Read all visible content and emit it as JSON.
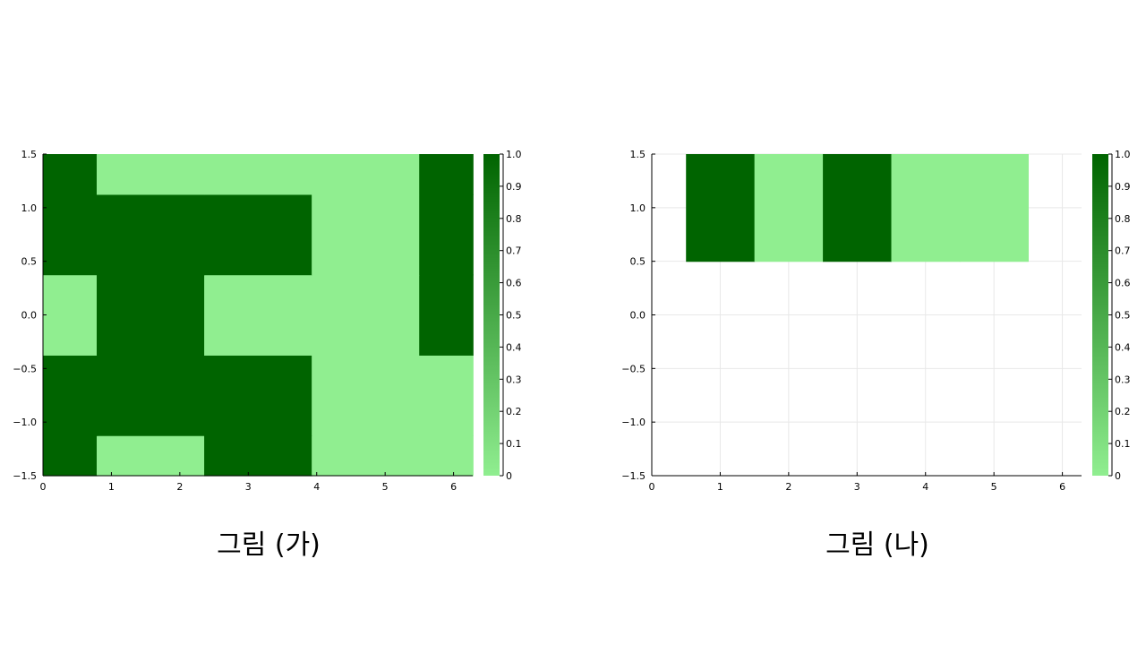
{
  "colors": {
    "low": "#90ee90",
    "high": "#006400",
    "grid": "#e8e8e8",
    "axis": "#000000"
  },
  "chart_data": [
    {
      "type": "heatmap",
      "caption": "그림 (가)",
      "xlim": [
        0,
        6.28
      ],
      "ylim": [
        -1.5,
        1.5
      ],
      "xticks": [
        "0",
        "1",
        "2",
        "3",
        "4",
        "5",
        "6"
      ],
      "yticks": [
        "−1.5",
        "−1.0",
        "−0.5",
        "0.0",
        "0.5",
        "1.0",
        "1.5"
      ],
      "colorbar": {
        "min": 0,
        "max": 1,
        "ticks": [
          "0",
          "0.1",
          "0.2",
          "0.3",
          "0.4",
          "0.5",
          "0.6",
          "0.7",
          "0.8",
          "0.9",
          "1.0"
        ]
      },
      "x_edges": [
        0,
        0.785,
        2.356,
        3.927,
        5.498,
        6.283
      ],
      "y_edges": [
        -1.5,
        -1.125,
        -0.375,
        0.375,
        1.125,
        1.5
      ],
      "values": [
        [
          1,
          0,
          1,
          0,
          0
        ],
        [
          1,
          1,
          1,
          0,
          0
        ],
        [
          0,
          1,
          0,
          0,
          1
        ],
        [
          1,
          1,
          1,
          0,
          1
        ],
        [
          1,
          0,
          0,
          0,
          1
        ]
      ],
      "grid": false
    },
    {
      "type": "heatmap",
      "caption": "그림 (나)",
      "xlim": [
        0,
        6.28
      ],
      "ylim": [
        -1.5,
        1.5
      ],
      "xticks": [
        "0",
        "1",
        "2",
        "3",
        "4",
        "5",
        "6"
      ],
      "yticks": [
        "−1.5",
        "−1.0",
        "−0.5",
        "0.0",
        "0.5",
        "1.0",
        "1.5"
      ],
      "colorbar": {
        "min": 0,
        "max": 1,
        "ticks": [
          "0",
          "0.1",
          "0.2",
          "0.3",
          "0.4",
          "0.5",
          "0.6",
          "0.7",
          "0.8",
          "0.9",
          "1.0"
        ]
      },
      "x_edges": [
        0.5,
        1.5,
        2.5,
        3.5,
        4.5,
        5.5
      ],
      "y_edges": [
        0.5,
        1.5
      ],
      "values": [
        [
          1,
          0,
          1,
          0,
          0
        ]
      ],
      "grid": true
    }
  ]
}
